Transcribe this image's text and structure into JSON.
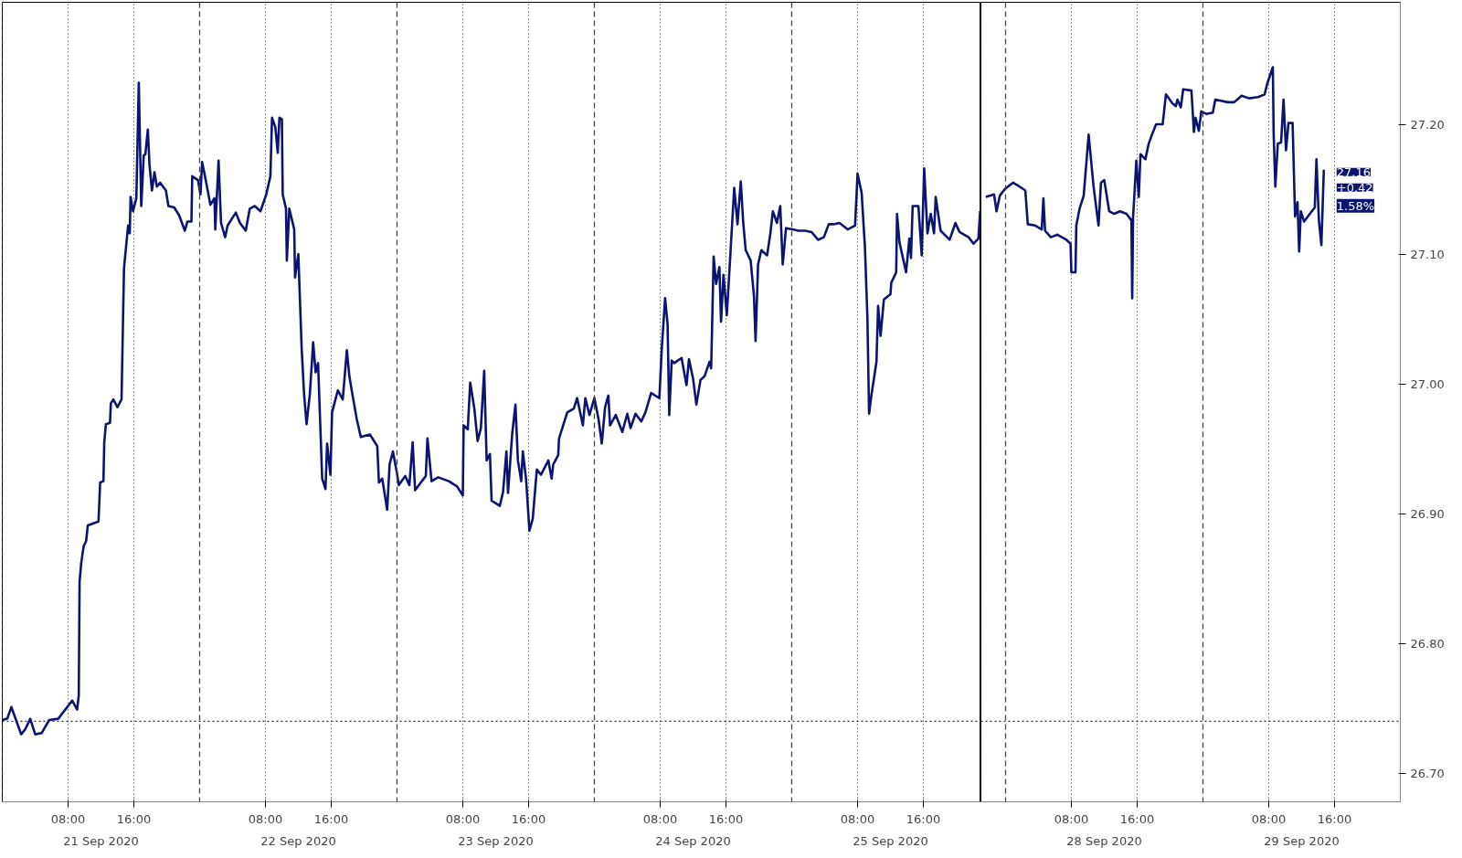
{
  "chart_data": [
    {
      "type": "line",
      "line_style": "solid",
      "grid": "x",
      "tick_labels": "x",
      "xlim": [
        "2020-09-21T00:00",
        "2020-09-25T23:00"
      ],
      "ylim": [
        26.678,
        27.294
      ],
      "xticks": [
        {
          "value": "2020-09-21T08:00",
          "label": "08:00"
        },
        {
          "value": "2020-09-21T16:00",
          "label": "16:00"
        },
        {
          "value": "2020-09-22T08:00",
          "label": "08:00"
        },
        {
          "value": "2020-09-22T16:00",
          "label": "16:00"
        },
        {
          "value": "2020-09-23T08:00",
          "label": "08:00"
        },
        {
          "value": "2020-09-23T16:00",
          "label": "16:00"
        },
        {
          "value": "2020-09-24T08:00",
          "label": "08:00"
        },
        {
          "value": "2020-09-24T16:00",
          "label": "16:00"
        },
        {
          "value": "2020-09-25T08:00",
          "label": "08:00"
        },
        {
          "value": "2020-09-25T16:00",
          "label": "16:00"
        }
      ],
      "x2lim": [
        "2020-09-21T00:00",
        "2020-09-25T23:00"
      ],
      "x2ticks": [
        {
          "value": "2020-09-21T12:00",
          "label": "21 Sep 2020"
        },
        {
          "value": "2020-09-22T12:00",
          "label": "22 Sep 2020"
        },
        {
          "value": "2020-09-23T12:00",
          "label": "23 Sep 2020"
        },
        {
          "value": "2020-09-24T12:00",
          "label": "24 Sep 2020"
        },
        {
          "value": "2020-09-25T12:00",
          "label": "25 Sep 2020"
        }
      ],
      "x": [
        "2020-09-21T00:00",
        "2020-09-21T00:36",
        "2020-09-21T01:06",
        "2020-09-21T02:18",
        "2020-09-21T02:48",
        "2020-09-21T03:24",
        "2020-09-21T04:00",
        "2020-09-21T04:48",
        "2020-09-21T05:42",
        "2020-09-21T06:48",
        "2020-09-21T07:54",
        "2020-09-21T08:30",
        "2020-09-21T09:06",
        "2020-09-21T09:18",
        "2020-09-21T09:24",
        "2020-09-21T09:36",
        "2020-09-21T09:54",
        "2020-09-21T10:12",
        "2020-09-21T10:24",
        "2020-09-21T11:42",
        "2020-09-21T11:54",
        "2020-09-21T12:18",
        "2020-09-21T12:24",
        "2020-09-21T12:36",
        "2020-09-21T13:06",
        "2020-09-21T13:12",
        "2020-09-21T13:30",
        "2020-09-21T14:00",
        "2020-09-21T14:30",
        "2020-09-21T14:48",
        "2020-09-21T15:18",
        "2020-09-21T15:30",
        "2020-09-21T15:36",
        "2020-09-21T15:54",
        "2020-09-21T16:18",
        "2020-09-21T16:36",
        "2020-09-21T16:54",
        "2020-09-21T17:12",
        "2020-09-21T17:24",
        "2020-09-21T17:42",
        "2020-09-21T17:54",
        "2020-09-21T18:12",
        "2020-09-21T18:30",
        "2020-09-21T18:48",
        "2020-09-21T19:12",
        "2020-09-21T19:54",
        "2020-09-21T20:12",
        "2020-09-21T20:54",
        "2020-09-21T21:30",
        "2020-09-21T22:12",
        "2020-09-21T22:30",
        "2020-09-21T23:00",
        "2020-09-21T23:06",
        "2020-09-21T23:48",
        "2020-09-22T00:06",
        "2020-09-22T00:18",
        "2020-09-22T00:48",
        "2020-09-22T01:18",
        "2020-09-22T01:48",
        "2020-09-22T01:54",
        "2020-09-22T02:18",
        "2020-09-22T02:36",
        "2020-09-22T03:06",
        "2020-09-22T03:24",
        "2020-09-22T04:24",
        "2020-09-22T04:54",
        "2020-09-22T05:36",
        "2020-09-22T06:06",
        "2020-09-22T06:42",
        "2020-09-22T07:24",
        "2020-09-22T08:06",
        "2020-09-22T08:36",
        "2020-09-22T08:48",
        "2020-09-22T09:12",
        "2020-09-22T09:30",
        "2020-09-22T09:42",
        "2020-09-22T10:00",
        "2020-09-22T10:06",
        "2020-09-22T10:30",
        "2020-09-22T10:36",
        "2020-09-22T10:54",
        "2020-09-22T11:30",
        "2020-09-22T11:36",
        "2020-09-22T12:00",
        "2020-09-22T12:24",
        "2020-09-22T12:42",
        "2020-09-22T13:00",
        "2020-09-22T13:24",
        "2020-09-22T13:48",
        "2020-09-22T14:06",
        "2020-09-22T14:24",
        "2020-09-22T14:54",
        "2020-09-22T15:18",
        "2020-09-22T15:30",
        "2020-09-22T15:54",
        "2020-09-22T16:06",
        "2020-09-22T16:48",
        "2020-09-22T17:24",
        "2020-09-22T17:54",
        "2020-09-22T18:12",
        "2020-09-22T18:36",
        "2020-09-22T19:06",
        "2020-09-22T19:36",
        "2020-09-22T20:42",
        "2020-09-22T21:36",
        "2020-09-22T21:48",
        "2020-09-22T22:12",
        "2020-09-22T22:48",
        "2020-09-22T23:06",
        "2020-09-22T23:30",
        "2020-09-23T00:00",
        "2020-09-23T00:12",
        "2020-09-23T01:00",
        "2020-09-23T01:30",
        "2020-09-23T01:54",
        "2020-09-23T02:12",
        "2020-09-23T02:54",
        "2020-09-23T03:30",
        "2020-09-23T03:42",
        "2020-09-23T04:12",
        "2020-09-23T05:00",
        "2020-09-23T06:18",
        "2020-09-23T07:18",
        "2020-09-23T08:00",
        "2020-09-23T08:06",
        "2020-09-23T08:36",
        "2020-09-23T08:54",
        "2020-09-23T09:24",
        "2020-09-23T09:48",
        "2020-09-23T10:12",
        "2020-09-23T10:36",
        "2020-09-23T10:54",
        "2020-09-23T11:18",
        "2020-09-23T11:30",
        "2020-09-23T12:30",
        "2020-09-23T12:54",
        "2020-09-23T13:18",
        "2020-09-23T13:30",
        "2020-09-23T14:00",
        "2020-09-23T14:24",
        "2020-09-23T14:42",
        "2020-09-23T15:06",
        "2020-09-23T15:18",
        "2020-09-23T15:42",
        "2020-09-23T16:06",
        "2020-09-23T16:30",
        "2020-09-23T17:00",
        "2020-09-23T17:30",
        "2020-09-23T18:24",
        "2020-09-23T18:48",
        "2020-09-23T19:00",
        "2020-09-23T19:36",
        "2020-09-23T19:42",
        "2020-09-23T20:06",
        "2020-09-23T20:42",
        "2020-09-23T21:30",
        "2020-09-23T21:54",
        "2020-09-23T22:36",
        "2020-09-23T22:54",
        "2020-09-23T23:24",
        "2020-09-24T00:00",
        "2020-09-24T00:30",
        "2020-09-24T00:54",
        "2020-09-24T01:18",
        "2020-09-24T01:42",
        "2020-09-24T01:54",
        "2020-09-24T02:36",
        "2020-09-24T03:24",
        "2020-09-24T04:00",
        "2020-09-24T04:24",
        "2020-09-24T05:00",
        "2020-09-24T05:42",
        "2020-09-24T06:12",
        "2020-09-24T06:54",
        "2020-09-24T07:54",
        "2020-09-24T08:12",
        "2020-09-24T08:36",
        "2020-09-24T08:54",
        "2020-09-24T09:06",
        "2020-09-24T09:24",
        "2020-09-24T09:42",
        "2020-09-24T10:36",
        "2020-09-24T11:12",
        "2020-09-24T11:30",
        "2020-09-24T12:00",
        "2020-09-24T12:24",
        "2020-09-24T12:54",
        "2020-09-24T13:24",
        "2020-09-24T14:00",
        "2020-09-24T14:12",
        "2020-09-24T14:30",
        "2020-09-24T14:48",
        "2020-09-24T15:12",
        "2020-09-24T15:24",
        "2020-09-24T15:42",
        "2020-09-24T16:06",
        "2020-09-24T16:30",
        "2020-09-24T17:00",
        "2020-09-24T17:24",
        "2020-09-24T17:48",
        "2020-09-24T18:06",
        "2020-09-24T18:24",
        "2020-09-24T19:00",
        "2020-09-24T19:24",
        "2020-09-24T19:36",
        "2020-09-24T19:54",
        "2020-09-24T20:18",
        "2020-09-24T21:00",
        "2020-09-24T21:24",
        "2020-09-24T21:42",
        "2020-09-24T22:12",
        "2020-09-24T22:36",
        "2020-09-24T22:54",
        "2020-09-24T23:18",
        "2020-09-25T00:06",
        "2020-09-25T00:48",
        "2020-09-25T01:36",
        "2020-09-25T02:24",
        "2020-09-25T03:12",
        "2020-09-25T03:54",
        "2020-09-25T04:30",
        "2020-09-25T05:06",
        "2020-09-25T05:48",
        "2020-09-25T06:48",
        "2020-09-25T07:42",
        "2020-09-25T08:00",
        "2020-09-25T08:30",
        "2020-09-25T08:54",
        "2020-09-25T09:12",
        "2020-09-25T09:24",
        "2020-09-25T09:42",
        "2020-09-25T10:18",
        "2020-09-25T10:30",
        "2020-09-25T10:48",
        "2020-09-25T11:12",
        "2020-09-25T12:00",
        "2020-09-25T12:06",
        "2020-09-25T12:42",
        "2020-09-25T12:48",
        "2020-09-25T13:06",
        "2020-09-25T13:54",
        "2020-09-25T14:18",
        "2020-09-25T14:30",
        "2020-09-25T14:42",
        "2020-09-25T15:24",
        "2020-09-25T15:48",
        "2020-09-25T16:06",
        "2020-09-25T16:30",
        "2020-09-25T16:54",
        "2020-09-25T17:18",
        "2020-09-25T17:30",
        "2020-09-25T18:06",
        "2020-09-25T19:12",
        "2020-09-25T19:54",
        "2020-09-25T20:24",
        "2020-09-25T21:30",
        "2020-09-25T22:06",
        "2020-09-25T22:42",
        "2020-09-25T22:54"
      ],
      "series": [
        {
          "color": "#0b1470",
          "values": [
            26.741,
            26.742,
            26.751,
            26.73,
            26.734,
            26.742,
            26.73,
            26.731,
            26.741,
            26.742,
            26.751,
            26.756,
            26.749,
            26.76,
            26.848,
            26.862,
            26.875,
            26.879,
            26.891,
            26.894,
            26.924,
            26.925,
            26.955,
            26.969,
            26.97,
            26.985,
            26.988,
            26.982,
            26.988,
            27.089,
            27.122,
            27.116,
            27.144,
            27.133,
            27.143,
            27.232,
            27.137,
            27.176,
            27.177,
            27.196,
            27.169,
            27.149,
            27.163,
            27.152,
            27.155,
            27.149,
            27.137,
            27.136,
            27.13,
            27.118,
            27.125,
            27.125,
            27.16,
            27.157,
            27.146,
            27.171,
            27.155,
            27.138,
            27.143,
            27.119,
            27.172,
            27.124,
            27.113,
            27.122,
            27.132,
            27.124,
            27.118,
            27.135,
            27.137,
            27.133,
            27.146,
            27.16,
            27.205,
            27.198,
            27.178,
            27.205,
            27.204,
            27.146,
            27.135,
            27.095,
            27.135,
            27.119,
            27.082,
            27.1,
            27.028,
            26.992,
            26.969,
            26.992,
            27.032,
            27.009,
            27.016,
            26.927,
            26.919,
            26.954,
            26.93,
            26.978,
            26.995,
            26.988,
            27.026,
            27.006,
            26.991,
            26.973,
            26.959,
            26.961,
            26.952,
            26.924,
            26.927,
            26.903,
            26.938,
            26.948,
            26.931,
            26.922,
            26.929,
            26.922,
            26.955,
            26.918,
            26.924,
            26.929,
            26.958,
            26.925,
            26.928,
            26.925,
            26.921,
            26.914,
            26.968,
            26.965,
            27.001,
            26.981,
            26.956,
            26.966,
            27.01,
            26.941,
            26.946,
            26.91,
            26.906,
            26.917,
            26.948,
            26.916,
            26.961,
            26.984,
            26.941,
            26.925,
            26.948,
            26.926,
            26.887,
            26.896,
            26.934,
            26.93,
            26.941,
            26.927,
            26.938,
            26.945,
            26.958,
            26.966,
            26.978,
            26.981,
            26.989,
            26.968,
            26.989,
            26.976,
            26.989,
            26.973,
            26.954,
            26.982,
            26.991,
            26.968,
            26.976,
            26.963,
            26.977,
            26.966,
            26.977,
            26.971,
            26.978,
            26.993,
            26.989,
            27.028,
            27.066,
            27.046,
            26.976,
            27.018,
            27.016,
            27.02,
            26.999,
            27.019,
            27.004,
            26.984,
            27.003,
            27.006,
            27.017,
            27.012,
            27.098,
            27.077,
            27.09,
            27.048,
            27.084,
            27.053,
            27.096,
            27.151,
            27.123,
            27.156,
            27.124,
            27.103,
            27.095,
            27.068,
            27.033,
            27.092,
            27.103,
            27.099,
            27.116,
            27.133,
            27.124,
            27.137,
            27.092,
            27.12,
            27.119,
            27.118,
            27.118,
            27.117,
            27.111,
            27.113,
            27.123,
            27.123,
            27.124,
            27.119,
            27.122,
            27.162,
            27.147,
            27.105,
            27.051,
            26.977,
            26.992,
            27.017,
            27.06,
            27.037,
            27.065,
            27.069,
            27.078,
            27.086,
            27.131,
            27.109,
            27.086,
            27.112,
            27.097,
            27.137,
            27.137,
            27.099,
            27.166,
            27.116,
            27.131,
            27.116,
            27.144,
            27.118,
            27.111,
            27.124,
            27.117,
            27.113,
            27.108,
            27.112,
            27.133
          ]
        }
      ],
      "ref_lines": [
        {
          "axis": "y",
          "value": 26.74,
          "label": null,
          "color": "#1a237e",
          "line_style": "dotted"
        },
        {
          "axis": "x",
          "value": "2020-09-21T00:00",
          "label": null,
          "color": "#444444",
          "line_style": "dashed"
        },
        {
          "axis": "x",
          "value": "2020-09-22T00:00",
          "label": null,
          "color": "#444444",
          "line_style": "dashed"
        },
        {
          "axis": "x",
          "value": "2020-09-23T00:00",
          "label": null,
          "color": "#444444",
          "line_style": "dashed"
        },
        {
          "axis": "x",
          "value": "2020-09-24T00:00",
          "label": null,
          "color": "#444444",
          "line_style": "dashed"
        },
        {
          "axis": "x",
          "value": "2020-09-25T00:00",
          "label": null,
          "color": "#444444",
          "line_style": "dashed"
        },
        {
          "axis": "x",
          "value": "2020-09-25T23:00",
          "label": null,
          "color": "#444444",
          "line_style": "dashed"
        }
      ]
    },
    {
      "type": "line",
      "line_style": "solid",
      "grid": "x",
      "xlim": [
        "2020-09-27T21:00",
        "2020-09-30T00:00"
      ],
      "ylim": [
        26.678,
        27.294
      ],
      "xticks": [
        {
          "value": "2020-09-28T08:00",
          "label": "08:00"
        },
        {
          "value": "2020-09-28T16:00",
          "label": "16:00"
        },
        {
          "value": "2020-09-29T08:00",
          "label": "08:00"
        },
        {
          "value": "2020-09-29T16:00",
          "label": "16:00"
        }
      ],
      "yticks": [
        {
          "value": 26.7,
          "label": "26.70"
        },
        {
          "value": 26.8,
          "label": "26.80"
        },
        {
          "value": 26.9,
          "label": "26.90"
        },
        {
          "value": 27.0,
          "label": "27.00"
        },
        {
          "value": 27.1,
          "label": "27.10"
        },
        {
          "value": 27.2,
          "label": "27.20"
        }
      ],
      "x2lim": [
        "2020-09-27T21:00",
        "2020-09-30T00:00"
      ],
      "x2ticks": [
        {
          "value": "2020-09-28T12:00",
          "label": "28 Sep 2020"
        },
        {
          "value": "2020-09-29T12:00",
          "label": "29 Sep 2020"
        }
      ],
      "x": [
        "2020-09-27T21:36",
        "2020-09-27T22:36",
        "2020-09-27T22:54",
        "2020-09-27T23:18",
        "2020-09-27T23:54",
        "2020-09-28T00:54",
        "2020-09-28T01:42",
        "2020-09-28T02:24",
        "2020-09-28T02:42",
        "2020-09-28T03:36",
        "2020-09-28T04:24",
        "2020-09-28T04:36",
        "2020-09-28T04:48",
        "2020-09-28T05:30",
        "2020-09-28T06:18",
        "2020-09-28T07:24",
        "2020-09-28T07:54",
        "2020-09-28T08:00",
        "2020-09-28T08:30",
        "2020-09-28T08:36",
        "2020-09-28T09:00",
        "2020-09-28T09:30",
        "2020-09-28T10:06",
        "2020-09-28T10:42",
        "2020-09-28T11:18",
        "2020-09-28T11:36",
        "2020-09-28T12:00",
        "2020-09-28T12:36",
        "2020-09-28T13:12",
        "2020-09-28T13:54",
        "2020-09-28T14:42",
        "2020-09-28T15:18",
        "2020-09-28T15:24",
        "2020-09-28T15:30",
        "2020-09-28T15:54",
        "2020-09-28T16:12",
        "2020-09-28T16:24",
        "2020-09-28T17:00",
        "2020-09-28T17:24",
        "2020-09-28T17:48",
        "2020-09-28T18:18",
        "2020-09-28T19:06",
        "2020-09-28T19:30",
        "2020-09-28T20:18",
        "2020-09-28T20:42",
        "2020-09-28T20:54",
        "2020-09-28T21:18",
        "2020-09-28T21:36",
        "2020-09-28T22:36",
        "2020-09-28T22:54",
        "2020-09-28T23:06",
        "2020-09-28T23:30",
        "2020-09-28T23:48",
        "2020-09-29T00:24",
        "2020-09-29T01:12",
        "2020-09-29T01:30",
        "2020-09-29T02:18",
        "2020-09-29T03:00",
        "2020-09-29T03:48",
        "2020-09-29T04:42",
        "2020-09-29T05:36",
        "2020-09-29T06:42",
        "2020-09-29T07:30",
        "2020-09-29T07:48",
        "2020-09-29T08:30",
        "2020-09-29T08:36",
        "2020-09-29T08:48",
        "2020-09-29T09:06",
        "2020-09-29T09:30",
        "2020-09-29T09:48",
        "2020-09-29T10:06",
        "2020-09-29T10:24",
        "2020-09-29T10:54",
        "2020-09-29T11:12",
        "2020-09-29T11:30",
        "2020-09-29T11:42",
        "2020-09-29T11:54",
        "2020-09-29T12:18",
        "2020-09-29T13:00",
        "2020-09-29T13:36",
        "2020-09-29T13:48",
        "2020-09-29T14:06",
        "2020-09-29T14:24",
        "2020-09-29T14:42"
      ],
      "series": [
        {
          "color": "#0b1470",
          "values": [
            27.144,
            27.146,
            27.133,
            27.145,
            27.15,
            27.155,
            27.152,
            27.149,
            27.123,
            27.122,
            27.119,
            27.143,
            27.118,
            27.113,
            27.115,
            27.111,
            27.108,
            27.086,
            27.086,
            27.122,
            27.135,
            27.145,
            27.192,
            27.152,
            27.122,
            27.155,
            27.157,
            27.133,
            27.131,
            27.133,
            27.131,
            27.126,
            27.066,
            27.128,
            27.172,
            27.144,
            27.177,
            27.173,
            27.185,
            27.192,
            27.2,
            27.2,
            27.223,
            27.216,
            27.214,
            27.219,
            27.213,
            27.227,
            27.226,
            27.194,
            27.205,
            27.195,
            27.21,
            27.208,
            27.209,
            27.219,
            27.218,
            27.217,
            27.217,
            27.222,
            27.22,
            27.221,
            27.223,
            27.231,
            27.244,
            27.192,
            27.152,
            27.185,
            27.186,
            27.219,
            27.18,
            27.201,
            27.201,
            27.129,
            27.14,
            27.102,
            27.133,
            27.125,
            27.131,
            27.136,
            27.173,
            27.126,
            27.107,
            27.165
          ]
        }
      ],
      "ref_lines": [
        {
          "axis": "y",
          "value": 26.74,
          "label": null,
          "color": "#1a237e",
          "line_style": "dotted"
        },
        {
          "axis": "x",
          "value": "2020-09-28T00:00",
          "label": null,
          "color": "#444444",
          "line_style": "dashed"
        },
        {
          "axis": "x",
          "value": "2020-09-29T00:00",
          "label": null,
          "color": "#444444",
          "line_style": "dashed"
        }
      ],
      "annotations": [
        {
          "text": "27.16",
          "x": "2020-09-29T14:42",
          "y": 27.16
        },
        "+0.42",
        "1.58%"
      ]
    }
  ]
}
